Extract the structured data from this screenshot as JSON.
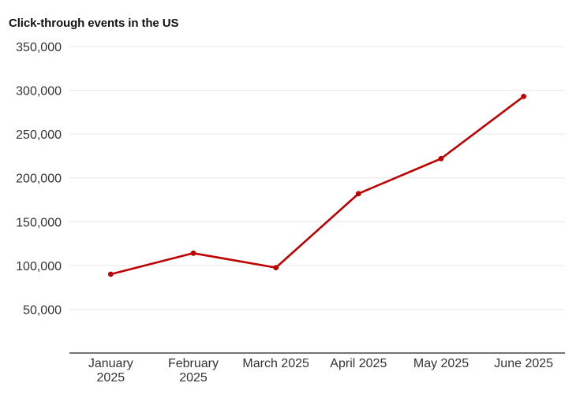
{
  "chart_data": {
    "type": "line",
    "title": "Click-through events in the US",
    "xlabel": "",
    "ylabel": "",
    "categories": [
      [
        "January",
        "2025"
      ],
      [
        "February",
        "2025"
      ],
      [
        "March 2025"
      ],
      [
        "April 2025"
      ],
      [
        "May 2025"
      ],
      [
        "June 2025"
      ]
    ],
    "series": [
      {
        "name": "Click-through events",
        "values": [
          90000,
          114000,
          97500,
          182000,
          222000,
          293000
        ]
      }
    ],
    "ylim": [
      0,
      350000
    ],
    "yticks": [
      50000,
      100000,
      150000,
      200000,
      250000,
      300000,
      350000
    ],
    "ytick_labels": [
      "50,000",
      "100,000",
      "150,000",
      "200,000",
      "250,000",
      "300,000",
      "350,000"
    ],
    "grid": true,
    "colors": {
      "line": "#c00000",
      "grid": "#e8e8e8",
      "axis": "#222222"
    }
  }
}
